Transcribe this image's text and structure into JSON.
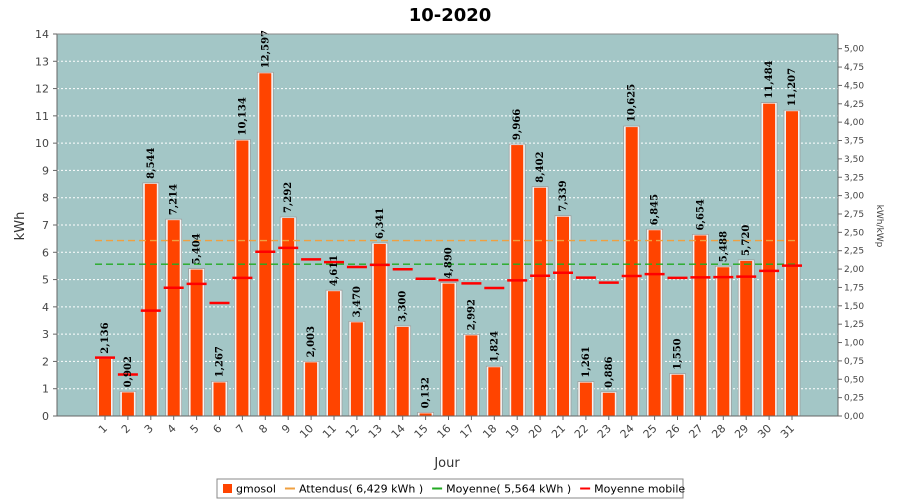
{
  "chart_data": {
    "type": "bar",
    "title": "10-2020",
    "xlabel": "Jour",
    "ylabel": "kWh",
    "ylabel_right": "kWh/kWp",
    "ylim": [
      0,
      14
    ],
    "ylim_right": [
      0,
      5.2
    ],
    "right_ticks": [
      "0,00",
      "0,25",
      "0,50",
      "0,75",
      "1,00",
      "1,25",
      "1,50",
      "1,75",
      "2,00",
      "2,25",
      "2,50",
      "2,75",
      "3,00",
      "3,25",
      "3,50",
      "3,75",
      "4,00",
      "4,25",
      "4,50",
      "4,75",
      "5,00"
    ],
    "categories": [
      "1",
      "2",
      "3",
      "4",
      "5",
      "6",
      "7",
      "8",
      "9",
      "10",
      "11",
      "12",
      "13",
      "14",
      "15",
      "16",
      "17",
      "18",
      "19",
      "20",
      "21",
      "22",
      "23",
      "24",
      "25",
      "26",
      "27",
      "28",
      "29",
      "30",
      "31"
    ],
    "series": [
      {
        "name": "gmosol",
        "values": [
          2.136,
          0.902,
          8.544,
          7.214,
          5.404,
          1.267,
          10.134,
          12.597,
          7.292,
          2.003,
          4.611,
          3.47,
          6.341,
          3.3,
          0.132,
          4.89,
          2.992,
          1.824,
          9.966,
          8.402,
          7.339,
          1.261,
          0.886,
          10.625,
          6.845,
          1.55,
          6.654,
          5.488,
          5.72,
          11.484,
          11.207
        ],
        "labels": [
          "2,136",
          "0,902",
          "8,544",
          "7,214",
          "5,404",
          "1,267",
          "10,134",
          "12,597",
          "7,292",
          "2,003",
          "4,611",
          "3,470",
          "6,341",
          "3,300",
          "0,132",
          "4,890",
          "2,992",
          "1,824",
          "9,966",
          "8,402",
          "7,339",
          "1,261",
          "0,886",
          "10,625",
          "6,845",
          "1,550",
          "6,654",
          "5,488",
          "5,720",
          "11,484",
          "11,207"
        ]
      },
      {
        "name": "Moyenne mobile",
        "values": [
          2.14,
          1.52,
          3.86,
          4.7,
          4.84,
          4.14,
          5.06,
          6.02,
          6.16,
          5.74,
          5.64,
          5.46,
          5.54,
          5.38,
          5.03,
          4.98,
          4.86,
          4.69,
          4.97,
          5.14,
          5.25,
          5.07,
          4.89,
          5.13,
          5.2,
          5.06,
          5.08,
          5.09,
          5.11,
          5.32,
          5.51
        ]
      }
    ],
    "reference_lines": [
      {
        "name": "Attendus",
        "value": 6.429,
        "color": "#f0a040"
      },
      {
        "name": "Moyenne",
        "value": 5.564,
        "color": "#22aa22"
      }
    ],
    "legend": {
      "position": "bottom",
      "items": [
        {
          "label": "gmosol",
          "color": "#ff4400"
        },
        {
          "label": "Attendus( 6,429 kWh )",
          "color": "#f0a040"
        },
        {
          "label": "Moyenne( 5,564 kWh )",
          "color": "#22aa22"
        },
        {
          "label": "Moyenne mobile",
          "color": "#ff0000"
        }
      ]
    },
    "grid": true,
    "colors": {
      "plot_bg": "#a3c6c6",
      "bar": "#ff4400",
      "bar_edge": "#ffffff",
      "moving_avg": "#ff0000"
    }
  }
}
